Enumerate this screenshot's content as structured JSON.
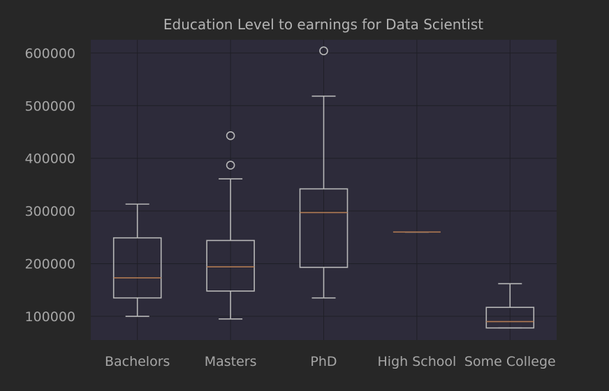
{
  "chart_data": {
    "type": "box",
    "title": "Education Level to earnings for Data Scientist",
    "xlabel": "",
    "ylabel": "",
    "ylim": [
      55000,
      625000
    ],
    "yticks": [
      100000,
      200000,
      300000,
      400000,
      500000,
      600000
    ],
    "grid": true,
    "categories": [
      "Bachelors",
      "Masters",
      "PhD",
      "High School",
      "Some College"
    ],
    "boxes": [
      {
        "whisker_low": 100000,
        "q1": 135000,
        "median": 173000,
        "q3": 249000,
        "whisker_high": 313000,
        "fliers": []
      },
      {
        "whisker_low": 95000,
        "q1": 148000,
        "median": 194000,
        "q3": 244000,
        "whisker_high": 361000,
        "fliers": [
          387000,
          443000
        ]
      },
      {
        "whisker_low": 135000,
        "q1": 193000,
        "median": 297000,
        "q3": 342000,
        "whisker_high": 518000,
        "fliers": [
          604000
        ]
      },
      {
        "whisker_low": 260000,
        "q1": 260000,
        "median": 260000,
        "q3": 260000,
        "whisker_high": 260000,
        "fliers": []
      },
      {
        "whisker_low": 78000,
        "q1": 78000,
        "median": 90000,
        "q3": 117000,
        "whisker_high": 162000,
        "fliers": []
      }
    ],
    "colors": {
      "figure_bg": "#272727",
      "axes_bg": "#2d2b3a",
      "box": "#b8b8b8",
      "median": "#b07a52",
      "text": "#a6a6a6"
    }
  }
}
